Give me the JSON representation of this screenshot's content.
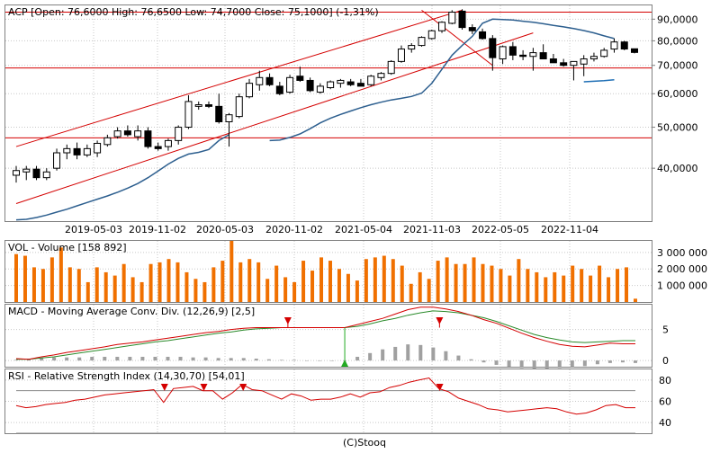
{
  "credit": "(C)Stooq",
  "colors": {
    "grid": "#c8c8c8",
    "frame": "#808080",
    "channel": "#d40000",
    "ma": "#2d5f8f",
    "ma_short": "#1f6fb5",
    "volume": "#f07000",
    "macd_line": "#d40000",
    "macd_signal": "#2a8a2a",
    "macd_hist": "#a0a0a0",
    "rsi_line": "#d40000",
    "sell_marker": "#d40000",
    "buy_marker": "#22aa22"
  },
  "chart_data": [
    {
      "type": "candlestick",
      "title": "ACP [Open: 76,6000  High: 76,6500  Low: 74,7000  Close: 75,1000] (-1,31%)",
      "y_scale": "log",
      "ylim": [
        30,
        97
      ],
      "y_ticks": [
        40,
        50,
        60,
        70,
        80,
        90
      ],
      "y_tick_labels": [
        "40,0000",
        "50,0000",
        "60,0000",
        "70,0000",
        "80,0000",
        "90,0000"
      ],
      "x_tick_labels": [
        "2019-05-03",
        "2019-11-02",
        "2020-05-03",
        "2020-11-02",
        "2021-05-04",
        "2021-11-03",
        "2022-05-05",
        "2022-11-04"
      ],
      "grid": true,
      "candles": [
        {
          "o": 38.5,
          "h": 40.5,
          "l": 37.0,
          "c": 39.5
        },
        {
          "o": 39.2,
          "h": 40.5,
          "l": 37.5,
          "c": 39.8
        },
        {
          "o": 39.8,
          "h": 40.5,
          "l": 37.5,
          "c": 38.0
        },
        {
          "o": 38.0,
          "h": 40.0,
          "l": 37.5,
          "c": 39.2
        },
        {
          "o": 40.0,
          "h": 44.5,
          "l": 39.5,
          "c": 43.5
        },
        {
          "o": 43.5,
          "h": 45.5,
          "l": 42.0,
          "c": 44.5
        },
        {
          "o": 44.5,
          "h": 46.0,
          "l": 42.0,
          "c": 43.0
        },
        {
          "o": 43.0,
          "h": 45.5,
          "l": 42.5,
          "c": 44.5
        },
        {
          "o": 43.5,
          "h": 46.5,
          "l": 42.5,
          "c": 45.8
        },
        {
          "o": 45.5,
          "h": 48.0,
          "l": 45.0,
          "c": 47.2
        },
        {
          "o": 47.5,
          "h": 50.0,
          "l": 47.0,
          "c": 49.0
        },
        {
          "o": 49.0,
          "h": 50.5,
          "l": 47.5,
          "c": 48.0
        },
        {
          "o": 47.5,
          "h": 50.5,
          "l": 46.5,
          "c": 49.0
        },
        {
          "o": 49.0,
          "h": 50.0,
          "l": 44.5,
          "c": 45.0
        },
        {
          "o": 45.0,
          "h": 46.0,
          "l": 44.0,
          "c": 44.5
        },
        {
          "o": 45.0,
          "h": 47.0,
          "l": 44.0,
          "c": 46.5
        },
        {
          "o": 46.5,
          "h": 50.5,
          "l": 45.5,
          "c": 50.0
        },
        {
          "o": 50.0,
          "h": 59.5,
          "l": 49.5,
          "c": 57.5
        },
        {
          "o": 56.0,
          "h": 57.5,
          "l": 55.0,
          "c": 56.5
        },
        {
          "o": 56.5,
          "h": 57.5,
          "l": 55.5,
          "c": 56.0
        },
        {
          "o": 56.0,
          "h": 60.0,
          "l": 51.0,
          "c": 51.5
        },
        {
          "o": 51.5,
          "h": 54.0,
          "l": 45.0,
          "c": 53.5
        },
        {
          "o": 53.0,
          "h": 60.0,
          "l": 52.5,
          "c": 59.0
        },
        {
          "o": 59.0,
          "h": 65.0,
          "l": 58.5,
          "c": 63.5
        },
        {
          "o": 63.0,
          "h": 68.0,
          "l": 61.0,
          "c": 65.5
        },
        {
          "o": 65.5,
          "h": 67.0,
          "l": 62.5,
          "c": 63.0
        },
        {
          "o": 62.5,
          "h": 64.0,
          "l": 59.5,
          "c": 60.0
        },
        {
          "o": 60.5,
          "h": 66.5,
          "l": 60.0,
          "c": 65.5
        },
        {
          "o": 66.0,
          "h": 69.5,
          "l": 64.0,
          "c": 64.5
        },
        {
          "o": 64.5,
          "h": 65.5,
          "l": 60.5,
          "c": 61.0
        },
        {
          "o": 60.5,
          "h": 63.5,
          "l": 60.0,
          "c": 62.5
        },
        {
          "o": 62.0,
          "h": 64.5,
          "l": 61.5,
          "c": 64.0
        },
        {
          "o": 63.5,
          "h": 65.0,
          "l": 62.0,
          "c": 64.5
        },
        {
          "o": 64.0,
          "h": 65.0,
          "l": 62.5,
          "c": 63.0
        },
        {
          "o": 63.5,
          "h": 65.0,
          "l": 62.5,
          "c": 62.5
        },
        {
          "o": 63.0,
          "h": 66.5,
          "l": 62.5,
          "c": 66.0
        },
        {
          "o": 65.5,
          "h": 67.5,
          "l": 64.5,
          "c": 67.0
        },
        {
          "o": 67.0,
          "h": 72.0,
          "l": 66.5,
          "c": 71.5
        },
        {
          "o": 71.5,
          "h": 78.0,
          "l": 71.0,
          "c": 76.5
        },
        {
          "o": 76.5,
          "h": 79.0,
          "l": 75.0,
          "c": 78.0
        },
        {
          "o": 78.0,
          "h": 82.0,
          "l": 77.5,
          "c": 81.5
        },
        {
          "o": 81.0,
          "h": 85.0,
          "l": 80.5,
          "c": 84.5
        },
        {
          "o": 84.5,
          "h": 89.0,
          "l": 83.5,
          "c": 88.5
        },
        {
          "o": 88.0,
          "h": 94.5,
          "l": 87.5,
          "c": 93.5
        },
        {
          "o": 94.0,
          "h": 95.0,
          "l": 85.0,
          "c": 86.0
        },
        {
          "o": 86.0,
          "h": 87.5,
          "l": 83.0,
          "c": 84.5
        },
        {
          "o": 84.0,
          "h": 85.5,
          "l": 80.5,
          "c": 81.0
        },
        {
          "o": 81.0,
          "h": 82.5,
          "l": 68.0,
          "c": 73.0
        },
        {
          "o": 72.5,
          "h": 78.0,
          "l": 70.5,
          "c": 77.5
        },
        {
          "o": 77.5,
          "h": 79.5,
          "l": 72.0,
          "c": 74.0
        },
        {
          "o": 74.0,
          "h": 76.0,
          "l": 72.0,
          "c": 73.5
        },
        {
          "o": 73.5,
          "h": 77.0,
          "l": 68.0,
          "c": 75.0
        },
        {
          "o": 75.0,
          "h": 78.5,
          "l": 73.0,
          "c": 72.5
        },
        {
          "o": 72.5,
          "h": 74.5,
          "l": 71.0,
          "c": 71.0
        },
        {
          "o": 71.0,
          "h": 72.5,
          "l": 69.5,
          "c": 70.0
        },
        {
          "o": 70.0,
          "h": 71.0,
          "l": 64.5,
          "c": 71.5
        },
        {
          "o": 70.5,
          "h": 74.0,
          "l": 66.0,
          "c": 72.5
        },
        {
          "o": 72.5,
          "h": 75.0,
          "l": 71.5,
          "c": 73.5
        },
        {
          "o": 73.5,
          "h": 77.0,
          "l": 73.0,
          "c": 76.0
        },
        {
          "o": 76.5,
          "h": 81.0,
          "l": 75.0,
          "c": 79.5
        },
        {
          "o": 79.5,
          "h": 80.0,
          "l": 76.0,
          "c": 76.5
        },
        {
          "o": 76.6,
          "h": 76.65,
          "l": 74.7,
          "c": 75.1
        }
      ],
      "ma_long": [
        30.2,
        30.3,
        30.6,
        31.0,
        31.5,
        32.0,
        32.6,
        33.2,
        33.8,
        34.4,
        35.1,
        35.9,
        36.8,
        38.0,
        39.4,
        40.9,
        42.2,
        43.2,
        43.6,
        44.3,
        46.5,
        48.0,
        null,
        null,
        null,
        46.5,
        46.6,
        47.3,
        48.2,
        49.6,
        51.2,
        52.5,
        53.6,
        54.6,
        55.6,
        56.5,
        57.3,
        58.0,
        58.5,
        59.1,
        60.2,
        63.5,
        68.5,
        74.0,
        78.0,
        82.0,
        88.0,
        90.0,
        89.8,
        89.6,
        89.0,
        88.5,
        87.8,
        87.0,
        86.3,
        85.5,
        84.6,
        83.5,
        82.2,
        81.0
      ],
      "ma_short": {
        "start_index": 56,
        "values": [
          64.0,
          64.2,
          64.4,
          64.7
        ]
      },
      "channel_lines": [
        {
          "from": [
            0,
            45.0
          ],
          "to": [
            44,
            94.5
          ]
        },
        {
          "from": [
            0,
            33.0
          ],
          "to": [
            51,
            83.5
          ]
        },
        {
          "from": [
            40,
            94.5
          ],
          "to": [
            47,
            70.0
          ]
        }
      ],
      "horizontal_lines": [
        93.5,
        69.0,
        47.2
      ]
    },
    {
      "type": "bar",
      "title": "VOL - Volume [158 892]",
      "ylim": [
        0,
        3700000
      ],
      "y_ticks": [
        1000000,
        2000000,
        3000000
      ],
      "y_tick_labels": [
        "1 000 000",
        "2 000 000",
        "3 000 000"
      ],
      "values": [
        2900000,
        2800000,
        2100000,
        2000000,
        2700000,
        3300000,
        2100000,
        2000000,
        1200000,
        2100000,
        1800000,
        1600000,
        2300000,
        1500000,
        1200000,
        2300000,
        2400000,
        2600000,
        2400000,
        1800000,
        1400000,
        1200000,
        2100000,
        2500000,
        3700000,
        2400000,
        2600000,
        2400000,
        1400000,
        2200000,
        1500000,
        1200000,
        2500000,
        1900000,
        2700000,
        2500000,
        2000000,
        1700000,
        1300000,
        2600000,
        2700000,
        2800000,
        2600000,
        2200000,
        1100000,
        1800000,
        1400000,
        2500000,
        2700000,
        2300000,
        2300000,
        2700000,
        2300000,
        2200000,
        2000000,
        1600000,
        2600000,
        2000000,
        1800000,
        1500000,
        1800000,
        1600000,
        2200000,
        2000000,
        1600000,
        2200000,
        1500000,
        2000000,
        2100000,
        200000
      ]
    },
    {
      "type": "line",
      "title": "MACD - Moving Average Conv. Div. (12,26,9) [2,5]",
      "ylim": [
        -1,
        9
      ],
      "y_ticks": [
        0,
        5
      ],
      "y_tick_labels": [
        "0",
        "5"
      ],
      "series": [
        {
          "values": [
            0.3,
            0.2,
            0.6,
            0.9,
            1.3,
            1.6,
            1.9,
            2.2,
            2.6,
            2.8,
            3.0,
            3.3,
            3.6,
            3.9,
            4.2,
            4.5,
            4.7,
            5.0,
            5.2,
            5.3,
            5.3,
            5.3,
            5.3,
            5.3,
            5.3,
            5.3,
            5.3,
            5.8,
            6.3,
            6.8,
            7.5,
            8.2,
            8.6,
            8.6,
            8.3,
            7.9,
            7.3,
            6.6,
            6.0,
            5.2,
            4.4,
            3.7,
            3.1,
            2.6,
            2.3,
            2.2,
            2.5,
            2.8,
            2.7,
            2.7
          ]
        },
        {
          "values": [
            0.2,
            0.2,
            0.4,
            0.6,
            0.9,
            1.2,
            1.5,
            1.8,
            2.1,
            2.4,
            2.7,
            3.0,
            3.2,
            3.5,
            3.8,
            4.1,
            4.4,
            4.6,
            4.9,
            5.1,
            5.2,
            5.3,
            5.3,
            5.3,
            5.3,
            5.3,
            5.3,
            5.5,
            5.9,
            6.4,
            6.8,
            7.3,
            7.7,
            8.0,
            7.9,
            7.7,
            7.3,
            6.9,
            6.3,
            5.6,
            4.9,
            4.2,
            3.7,
            3.3,
            3.0,
            2.9,
            3.0,
            3.1,
            3.2,
            3.2
          ]
        },
        {
          "values": [
            0.1,
            0.3,
            0.4,
            0.5,
            0.5,
            0.5,
            0.6,
            0.6,
            0.6,
            0.6,
            0.6,
            0.6,
            0.6,
            0.6,
            0.5,
            0.5,
            0.4,
            0.4,
            0.4,
            0.3,
            0.2,
            0.1,
            0.1,
            0.0,
            0.0,
            0.0,
            0.0,
            0.6,
            1.2,
            1.8,
            2.2,
            2.6,
            2.5,
            2.1,
            1.5,
            0.8,
            0.2,
            -0.3,
            -0.7,
            -1.0,
            -1.2,
            -1.3,
            -1.3,
            -1.2,
            -1.1,
            -0.9,
            -0.6,
            -0.4,
            -0.3,
            -0.4
          ]
        }
      ]
    },
    {
      "type": "line",
      "title": "RSI - Relative Strength Index (14,30,70) [54,01]",
      "ylim": [
        30,
        90
      ],
      "y_ticks": [
        40,
        60,
        80
      ],
      "y_tick_labels": [
        "40",
        "60",
        "80"
      ],
      "reference_lines": [
        30,
        70
      ],
      "series": [
        {
          "values": [
            56,
            54,
            55,
            57,
            58,
            59,
            61,
            62,
            64,
            66,
            67,
            68,
            69,
            70,
            71,
            59,
            72,
            73,
            74,
            70,
            70,
            62,
            68,
            76,
            71,
            70,
            66,
            62,
            67,
            65,
            61,
            62,
            62,
            64,
            67,
            64,
            68,
            69,
            73,
            75,
            78,
            80,
            82,
            72,
            69,
            63,
            60,
            57,
            53,
            52,
            50,
            51,
            52,
            53,
            54,
            53,
            50,
            48,
            49,
            52,
            56,
            57,
            54,
            54
          ]
        }
      ]
    }
  ]
}
